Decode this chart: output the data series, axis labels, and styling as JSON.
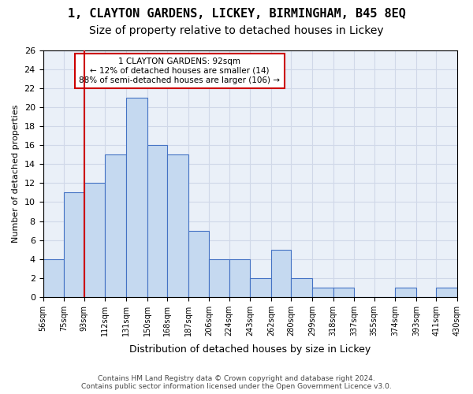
{
  "title_line1": "1, CLAYTON GARDENS, LICKEY, BIRMINGHAM, B45 8EQ",
  "title_line2": "Size of property relative to detached houses in Lickey",
  "xlabel": "Distribution of detached houses by size in Lickey",
  "ylabel": "Number of detached properties",
  "footer_line1": "Contains HM Land Registry data © Crown copyright and database right 2024.",
  "footer_line2": "Contains public sector information licensed under the Open Government Licence v3.0.",
  "annotation_line1": "1 CLAYTON GARDENS: 92sqm",
  "annotation_line2": "← 12% of detached houses are smaller (14)",
  "annotation_line3": "88% of semi-detached houses are larger (106) →",
  "property_size": 92,
  "bar_edges": [
    56,
    75,
    93,
    112,
    131,
    150,
    168,
    187,
    206,
    224,
    243,
    262,
    280,
    299,
    318,
    337,
    355,
    374,
    393,
    411,
    430
  ],
  "bar_heights": [
    4,
    11,
    12,
    15,
    21,
    16,
    15,
    7,
    4,
    4,
    2,
    5,
    2,
    1,
    1,
    0,
    0,
    1,
    0,
    1
  ],
  "bar_color": "#c5d9f0",
  "bar_edge_color": "#4472c4",
  "vline_color": "#cc0000",
  "vline_x": 93,
  "ylim": [
    0,
    26
  ],
  "yticks": [
    0,
    2,
    4,
    6,
    8,
    10,
    12,
    14,
    16,
    18,
    20,
    22,
    24,
    26
  ],
  "grid_color": "#d0d8e8",
  "background_color": "#eaf0f8",
  "title_fontsize": 11,
  "subtitle_fontsize": 10
}
